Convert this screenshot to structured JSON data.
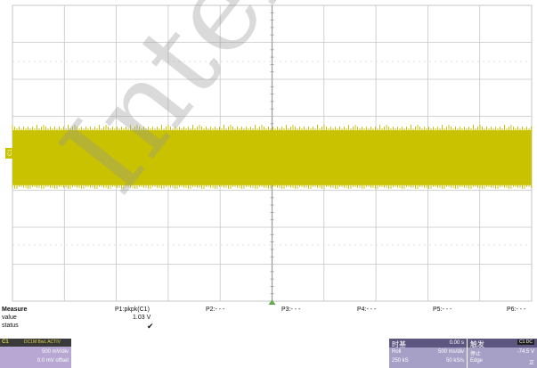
{
  "colors": {
    "trace": "#c8c200",
    "grid": "#c6c6c6",
    "grid_center": "#999999",
    "panel": "#a69fc6",
    "ch1_panel": "#b7a7d2",
    "marker": "#6aa84f"
  },
  "waveform": {
    "channel_label": "C1",
    "level_percent": 0.5,
    "top_percent": 0.41,
    "bottom_percent": 0.62
  },
  "measure": {
    "header": "Measure",
    "row_labels": [
      "value",
      "status"
    ],
    "p1": {
      "label": "P1:pkpk(C1)",
      "value": "1.03 V",
      "status": "✔"
    },
    "params": [
      "P2:- - -",
      "P3:- - -",
      "P4:- - -",
      "P5:- - -",
      "P6:- - -"
    ]
  },
  "ch1": {
    "tag": "C1",
    "badges": "DC1M BwL ACTIV",
    "scale": "500 mV/div",
    "offset": "0.0 mV offset"
  },
  "timebase": {
    "title": "时基",
    "delay": "0.00 s",
    "mode": "Roll",
    "tdiv": "500 ms/div",
    "samples": "250 kS",
    "rate": "50 kS/s"
  },
  "trigger": {
    "title": "触发",
    "mode_badge": "C1 DC",
    "state": "停止",
    "level": "-74.5 V",
    "type": "Edge",
    "slope": "正"
  },
  "watermark": "Internal use"
}
